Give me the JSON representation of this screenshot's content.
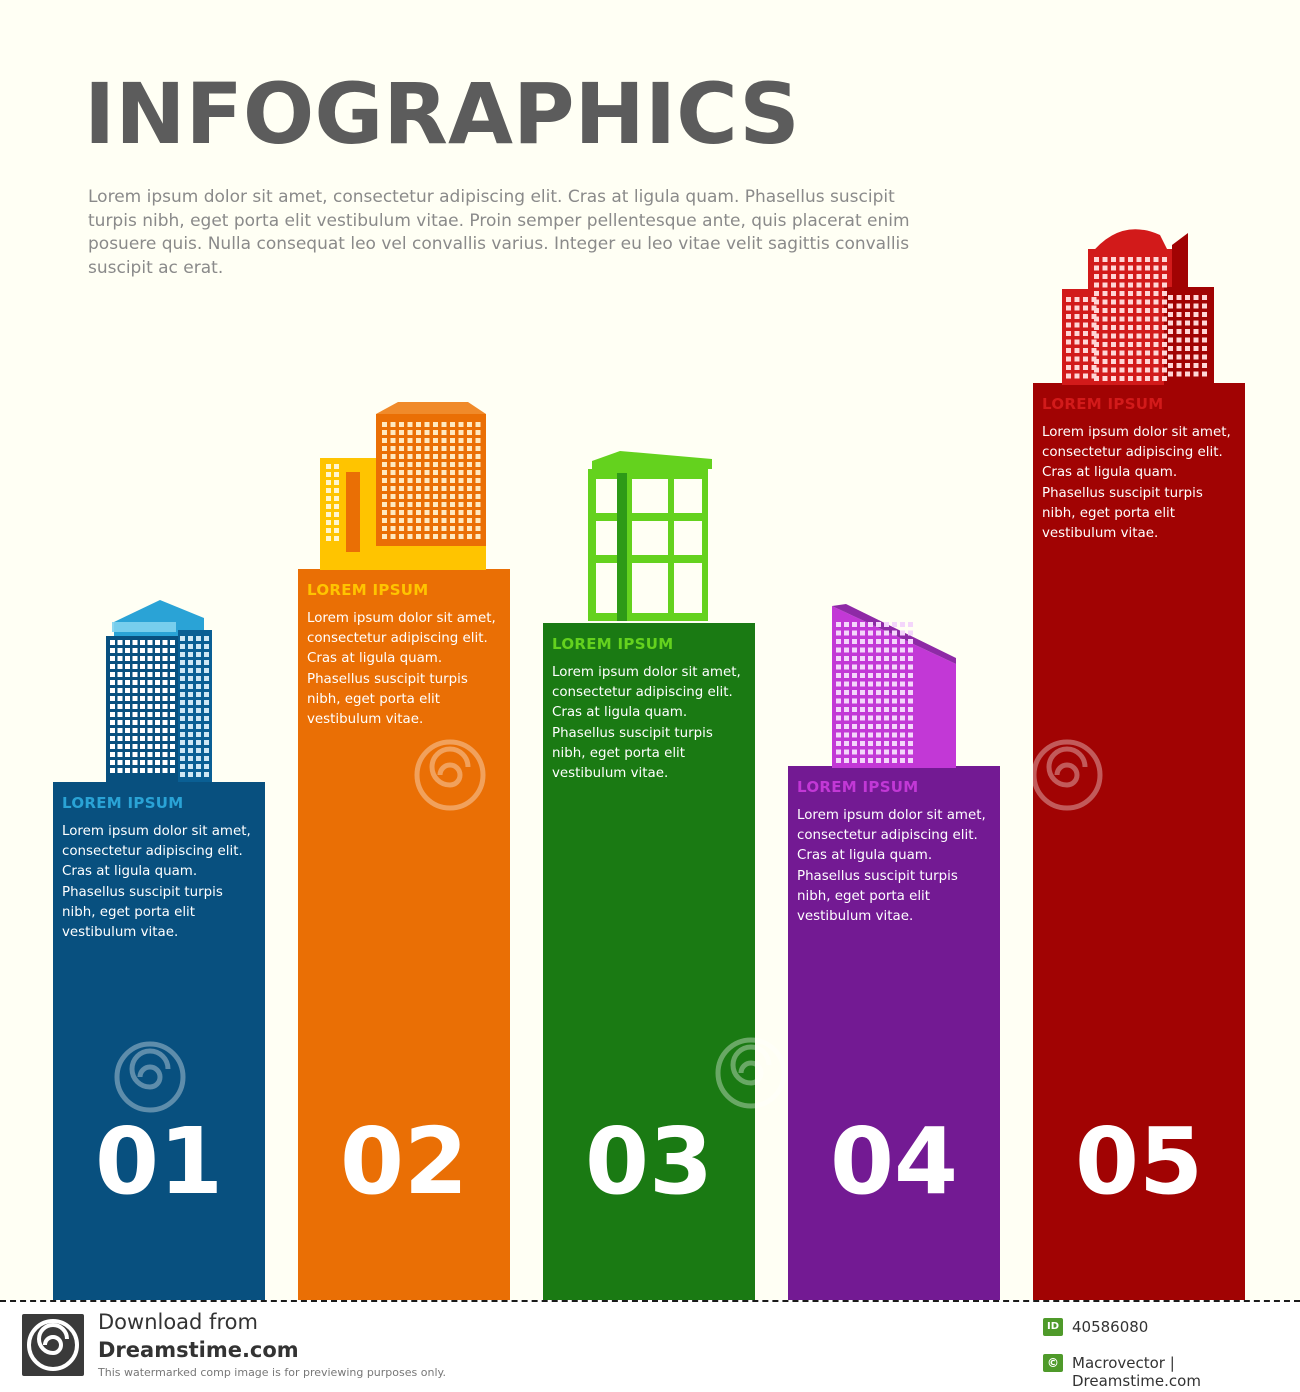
{
  "header": {
    "title": "INFOGRAPHICS",
    "intro": "Lorem ipsum dolor sit amet, consectetur adipiscing elit. Cras at ligula quam. Phasellus suscipit turpis nibh, eget porta elit vestibulum vitae. Proin semper pellentesque ante, quis placerat enim posuere quis. Nulla consequat leo vel convallis varius. Integer eu leo vitae velit sagittis convallis suscipit ac erat."
  },
  "bars": [
    {
      "number": "01",
      "heading": "LOREM IPSUM",
      "text": "Lorem ipsum dolor sit amet, consectetur adipiscing elit. Cras at ligula quam. Phasellus suscipit turpis nibh, eget porta elit vestibulum vitae.",
      "color": "#08507f",
      "heading_color": "#2aa3d6",
      "building_icon": "office-tower-icon"
    },
    {
      "number": "02",
      "heading": "LOREM IPSUM",
      "text": "Lorem ipsum dolor sit amet, consectetur adipiscing elit. Cras at ligula quam. Phasellus suscipit turpis nibh, eget porta elit vestibulum vitae.",
      "color": "#ea6f05",
      "heading_color": "#ffc400",
      "building_icon": "twin-buildings-icon"
    },
    {
      "number": "03",
      "heading": "LOREM IPSUM",
      "text": "Lorem ipsum dolor sit amet, consectetur adipiscing elit. Cras at ligula quam. Phasellus suscipit turpis nibh, eget porta elit vestibulum vitae.",
      "color": "#1a7a13",
      "heading_color": "#64d21e",
      "building_icon": "glass-building-icon"
    },
    {
      "number": "04",
      "heading": "LOREM IPSUM",
      "text": "Lorem ipsum dolor sit amet, consectetur adipiscing elit. Cras at ligula quam. Phasellus suscipit turpis nibh, eget porta elit vestibulum vitae.",
      "color": "#731a93",
      "heading_color": "#c238d6",
      "building_icon": "slanted-tower-icon"
    },
    {
      "number": "05",
      "heading": "LOREM IPSUM",
      "text": "Lorem ipsum dolor sit amet, consectetur adipiscing elit. Cras at ligula quam. Phasellus suscipit turpis nibh, eget porta elit vestibulum vitae.",
      "color": "#a10303",
      "heading_color": "#d21a1a",
      "building_icon": "domed-complex-icon"
    }
  ],
  "footer": {
    "download": "Download from",
    "site": "Dreamstime.com",
    "note": "This watermarked comp image is for previewing purposes only.",
    "id_badge": "ID",
    "id": "40586080",
    "copyright_badge": "©",
    "author": "Macrovector | Dreamstime.com"
  }
}
